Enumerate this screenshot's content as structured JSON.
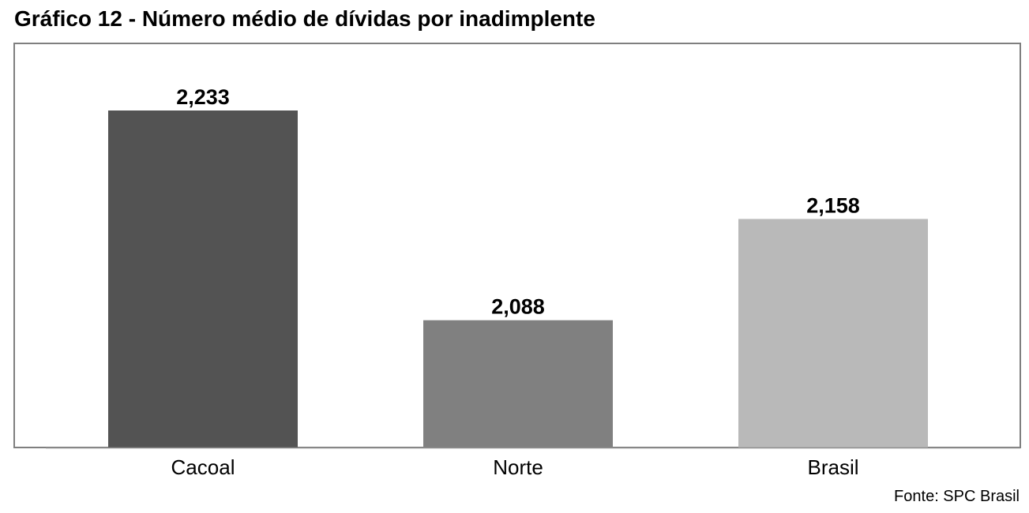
{
  "chart_title": "Gráfico 12 - Número médio de dívidas por inadimplente",
  "source": "Fonte: SPC Brasil",
  "chart_data": {
    "type": "bar",
    "title": "Gráfico 12 - Número médio de dívidas por inadimplente",
    "categories": [
      "Cacoal",
      "Norte",
      "Brasil"
    ],
    "values": [
      2.233,
      2.088,
      2.158
    ],
    "data_labels": [
      "2,233",
      "2,088",
      "2,158"
    ],
    "bar_colors": [
      "#535353",
      "#808080",
      "#b9b9b9"
    ],
    "ylim": [
      2.0,
      2.26
    ],
    "xlabel": "",
    "ylabel": "",
    "grid": false,
    "legend": "none"
  }
}
